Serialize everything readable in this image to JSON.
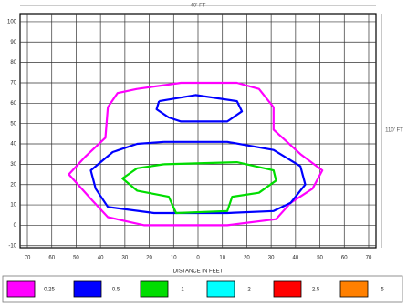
{
  "chart_data": {
    "type": "contour",
    "x_label": "DISTANCE IN FEET",
    "width_label": "40' FT",
    "height_label": "110' FT",
    "xlim": [
      -73,
      73
    ],
    "ylim": [
      -11,
      104
    ],
    "xticks": [
      {
        "value": -70,
        "label": "70"
      },
      {
        "value": -60,
        "label": "60"
      },
      {
        "value": -50,
        "label": "50"
      },
      {
        "value": -40,
        "label": "40"
      },
      {
        "value": -30,
        "label": "30"
      },
      {
        "value": -20,
        "label": "20"
      },
      {
        "value": -10,
        "label": "10"
      },
      0,
      10,
      20,
      30,
      40,
      50,
      60,
      70
    ],
    "yticks": [
      -10,
      0,
      10,
      20,
      30,
      40,
      50,
      60,
      70,
      80,
      90,
      100
    ],
    "grid": true,
    "series": [
      {
        "name": "0.25",
        "color": "#ff00ff",
        "x": [
          -25,
          -7,
          16,
          25,
          31,
          31,
          42,
          51,
          47,
          38,
          32,
          12,
          -22,
          -37,
          -44,
          -53,
          -46,
          -38,
          -37,
          -33,
          -25
        ],
        "y": [
          67,
          70,
          70,
          67,
          58,
          47,
          35,
          27,
          18,
          11,
          3,
          0,
          0,
          4,
          13,
          25,
          34,
          43,
          58,
          65,
          67
        ]
      },
      {
        "name": "0.5",
        "color": "#0000ff",
        "x": [
          -16,
          -1,
          16,
          18,
          12,
          -7,
          -12,
          -17,
          -16,
          null,
          -14,
          12,
          31,
          42,
          44,
          38,
          31,
          12,
          -18,
          -37,
          -42,
          -44,
          -35,
          -25,
          -14
        ],
        "y": [
          61,
          64,
          61,
          56,
          51,
          51,
          53,
          57,
          61,
          null,
          41,
          41,
          37,
          29,
          20,
          11,
          7,
          6,
          6,
          9,
          18,
          27,
          36,
          40,
          41
        ]
      },
      {
        "name": "1",
        "color": "#00dd00",
        "x": [
          -14,
          16,
          31,
          32,
          25,
          14,
          12,
          -9,
          -12,
          -25,
          -31,
          -25,
          -14
        ],
        "y": [
          30,
          31,
          27,
          22,
          16,
          14,
          7,
          6,
          14,
          17,
          23,
          28,
          30
        ]
      },
      {
        "name": "2",
        "color": "#00ffff",
        "x": [],
        "y": []
      },
      {
        "name": "2.5",
        "color": "#ff0000",
        "x": [],
        "y": []
      },
      {
        "name": "5",
        "color": "#ff8000",
        "x": [],
        "y": []
      }
    ]
  }
}
